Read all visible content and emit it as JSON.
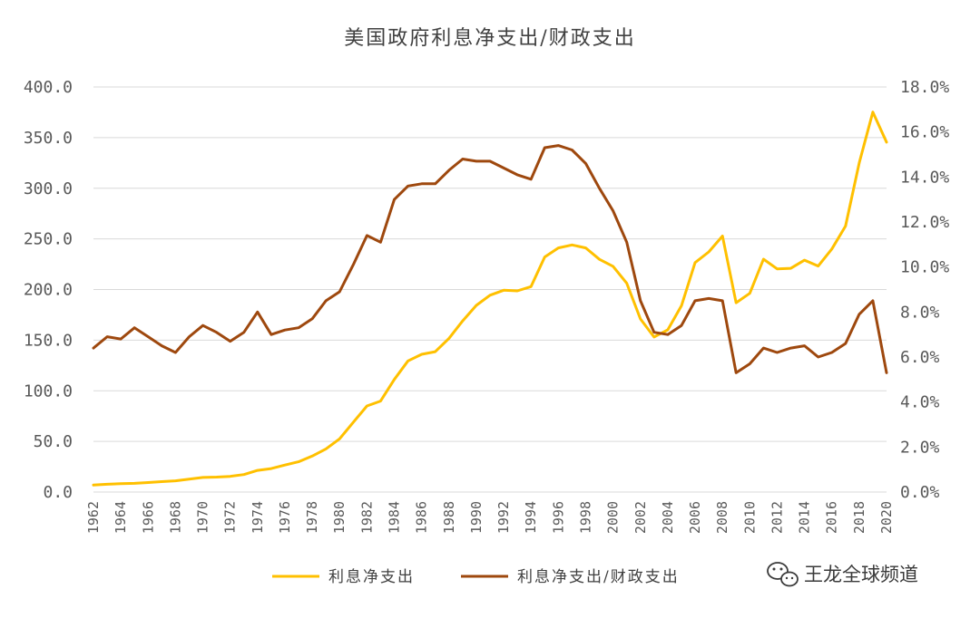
{
  "chart_data": {
    "type": "line",
    "title": "美国政府利息净支出/财政支出",
    "x": [
      1962,
      1963,
      1964,
      1965,
      1966,
      1967,
      1968,
      1969,
      1970,
      1971,
      1972,
      1973,
      1974,
      1975,
      1976,
      1977,
      1978,
      1979,
      1980,
      1981,
      1982,
      1983,
      1984,
      1985,
      1986,
      1987,
      1988,
      1989,
      1990,
      1991,
      1992,
      1993,
      1994,
      1995,
      1996,
      1997,
      1998,
      1999,
      2000,
      2001,
      2002,
      2003,
      2004,
      2005,
      2006,
      2007,
      2008,
      2009,
      2010,
      2011,
      2012,
      2013,
      2014,
      2015,
      2016,
      2017,
      2018,
      2019,
      2020
    ],
    "x_tick_labels": [
      "1962",
      "1964",
      "1966",
      "1968",
      "1970",
      "1972",
      "1974",
      "1976",
      "1978",
      "1980",
      "1982",
      "1984",
      "1986",
      "1988",
      "1990",
      "1992",
      "1994",
      "1996",
      "1998",
      "2000",
      "2002",
      "2004",
      "2006",
      "2008",
      "2010",
      "2012",
      "2014",
      "2016",
      "2018",
      "2020"
    ],
    "y_left_ticks": [
      "0.0",
      "50.0",
      "100.0",
      "150.0",
      "200.0",
      "250.0",
      "300.0",
      "350.0",
      "400.0"
    ],
    "y_right_ticks": [
      "0.0%",
      "2.0%",
      "4.0%",
      "6.0%",
      "8.0%",
      "10.0%",
      "12.0%",
      "14.0%",
      "16.0%",
      "18.0%"
    ],
    "y_left_range": [
      0,
      400
    ],
    "y_right_range": [
      0,
      18
    ],
    "grid": true,
    "legend_position": "bottom",
    "series": [
      {
        "name": "利息净支出",
        "axis": "left",
        "color": "#FFC000",
        "values": [
          6.9,
          7.7,
          8.2,
          8.6,
          9.4,
          10.3,
          11.1,
          12.7,
          14.4,
          14.8,
          15.5,
          17.3,
          21.4,
          23.2,
          26.7,
          29.9,
          35.5,
          42.6,
          52.5,
          68.8,
          85.0,
          89.8,
          111.1,
          129.5,
          136.0,
          138.6,
          151.8,
          169.0,
          184.3,
          194.4,
          199.3,
          198.7,
          202.9,
          232.1,
          241.1,
          244.0,
          241.1,
          229.8,
          222.9,
          206.2,
          170.9,
          153.1,
          160.2,
          184.0,
          226.6,
          237.1,
          252.8,
          186.9,
          196.2,
          230.0,
          220.4,
          220.9,
          229.0,
          223.2,
          240.0,
          262.6,
          325.0,
          375.2,
          345.5
        ]
      },
      {
        "name": "利息净支出/财政支出",
        "axis": "right",
        "color": "#9E480E",
        "values": [
          6.4,
          6.9,
          6.8,
          7.3,
          6.9,
          6.5,
          6.2,
          6.9,
          7.4,
          7.1,
          6.7,
          7.1,
          8.0,
          7.0,
          7.2,
          7.3,
          7.7,
          8.5,
          8.9,
          10.1,
          11.4,
          11.1,
          13.0,
          13.6,
          13.7,
          13.7,
          14.3,
          14.8,
          14.7,
          14.7,
          14.4,
          14.1,
          13.9,
          15.3,
          15.4,
          15.2,
          14.6,
          13.5,
          12.5,
          11.1,
          8.5,
          7.1,
          7.0,
          7.4,
          8.5,
          8.6,
          8.5,
          5.3,
          5.7,
          6.4,
          6.2,
          6.4,
          6.5,
          6.0,
          6.2,
          6.6,
          7.9,
          8.5,
          5.3
        ]
      }
    ]
  },
  "watermark": {
    "icon": "wechat-icon",
    "text": "王龙全球频道"
  }
}
